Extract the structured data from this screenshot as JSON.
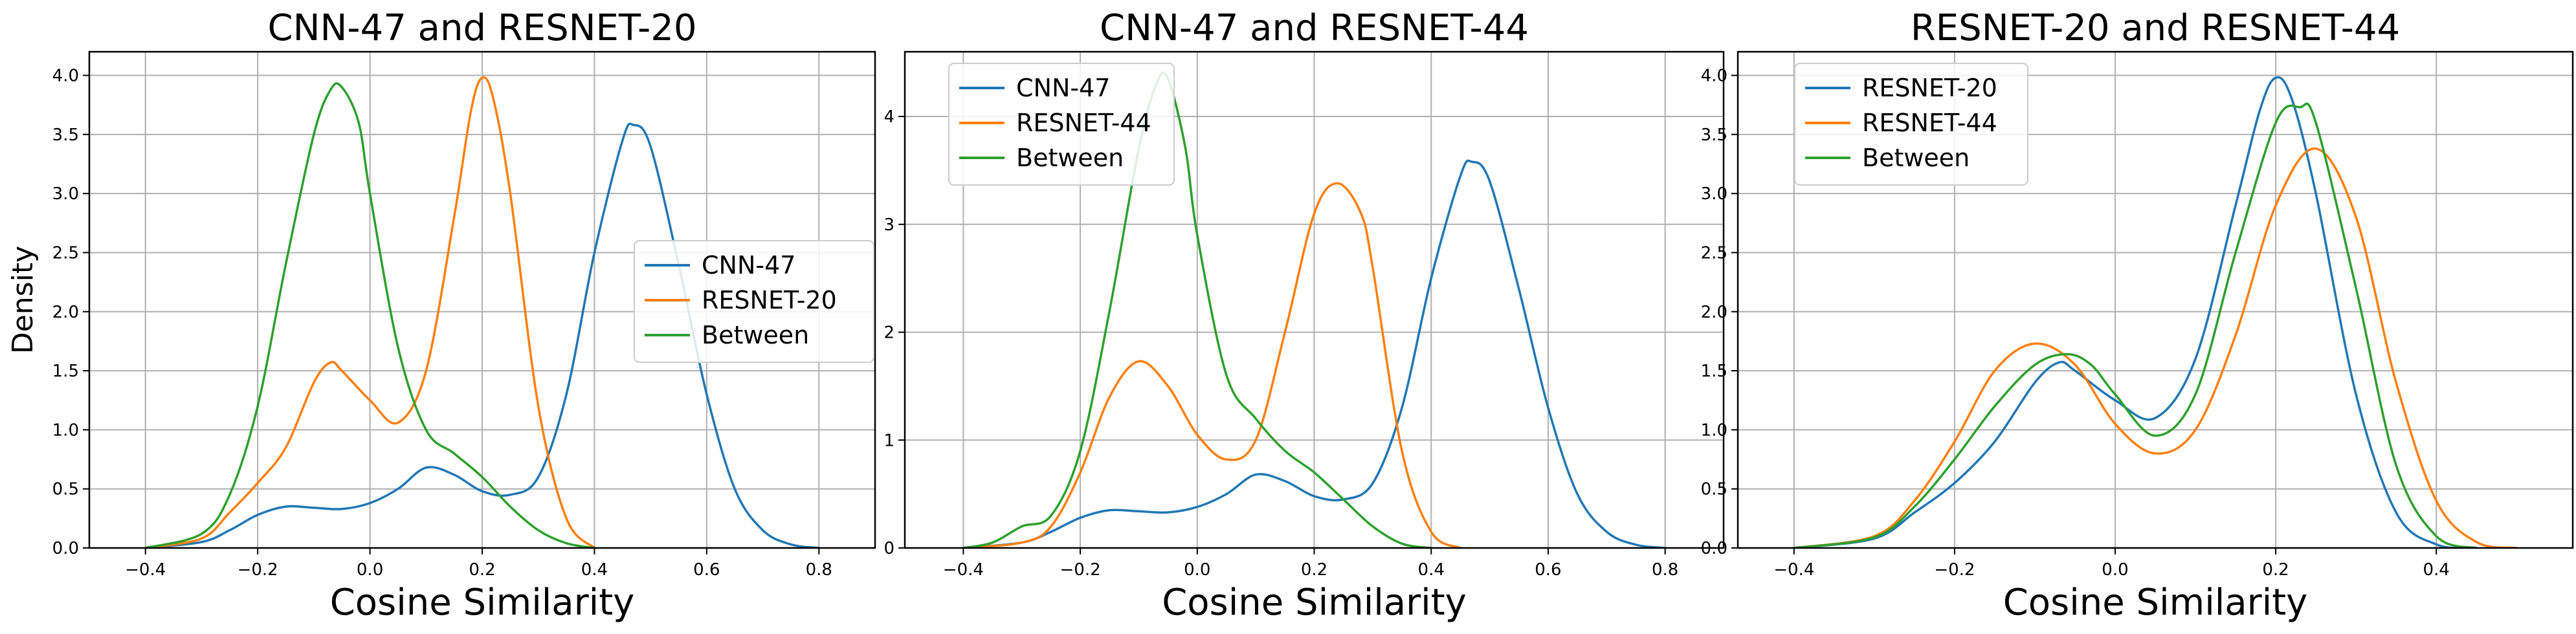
{
  "chart_data": [
    {
      "type": "line",
      "title": "CNN-47 and RESNET-20",
      "xlabel": "Cosine Similarity",
      "ylabel": "Density",
      "xlim": [
        -0.5,
        0.9
      ],
      "ylim": [
        0,
        4.2
      ],
      "xticks": [
        -0.4,
        -0.2,
        0.0,
        0.2,
        0.4,
        0.6,
        0.8
      ],
      "xtick_labels": [
        "−0.4",
        "−0.2",
        "0.0",
        "0.2",
        "0.4",
        "0.6",
        "0.8"
      ],
      "yticks": [
        0,
        0.5,
        1.0,
        1.5,
        2.0,
        2.5,
        3.0,
        3.5,
        4.0
      ],
      "ytick_labels": [
        "0.0",
        "0.5",
        "1.0",
        "1.5",
        "2.0",
        "2.5",
        "3.0",
        "3.5",
        "4.0"
      ],
      "grid": true,
      "legend_position": "center-right",
      "series": [
        {
          "name": "CNN-47",
          "color": "#1f77b4",
          "x": [
            -0.4,
            -0.3,
            -0.25,
            -0.2,
            -0.15,
            -0.1,
            -0.05,
            0.0,
            0.05,
            0.1,
            0.15,
            0.2,
            0.25,
            0.3,
            0.35,
            0.4,
            0.45,
            0.47,
            0.5,
            0.55,
            0.6,
            0.65,
            0.7,
            0.75,
            0.8
          ],
          "y": [
            0.0,
            0.05,
            0.15,
            0.28,
            0.35,
            0.34,
            0.33,
            0.38,
            0.5,
            0.68,
            0.62,
            0.48,
            0.45,
            0.6,
            1.3,
            2.5,
            3.45,
            3.58,
            3.4,
            2.4,
            1.3,
            0.5,
            0.15,
            0.03,
            0.0
          ]
        },
        {
          "name": "RESNET-20",
          "color": "#ff7f0e",
          "x": [
            -0.4,
            -0.3,
            -0.25,
            -0.2,
            -0.15,
            -0.1,
            -0.07,
            -0.05,
            0.0,
            0.05,
            0.1,
            0.15,
            0.18,
            0.2,
            0.22,
            0.25,
            0.3,
            0.35,
            0.4
          ],
          "y": [
            0.0,
            0.08,
            0.3,
            0.55,
            0.85,
            1.4,
            1.57,
            1.5,
            1.25,
            1.06,
            1.5,
            2.8,
            3.7,
            3.98,
            3.8,
            3.0,
            1.2,
            0.25,
            0.0
          ]
        },
        {
          "name": "Between",
          "color": "#2ca02c",
          "x": [
            -0.4,
            -0.3,
            -0.25,
            -0.2,
            -0.15,
            -0.1,
            -0.07,
            -0.05,
            -0.02,
            0.0,
            0.05,
            0.1,
            0.15,
            0.2,
            0.25,
            0.3,
            0.35,
            0.4
          ],
          "y": [
            0.0,
            0.12,
            0.45,
            1.2,
            2.4,
            3.5,
            3.88,
            3.9,
            3.6,
            3.0,
            1.7,
            1.0,
            0.8,
            0.6,
            0.35,
            0.15,
            0.04,
            0.0
          ]
        }
      ]
    },
    {
      "type": "line",
      "title": "CNN-47 and RESNET-44",
      "xlabel": "Cosine Similarity",
      "ylabel": "",
      "xlim": [
        -0.5,
        0.9
      ],
      "ylim": [
        0,
        4.6
      ],
      "xticks": [
        -0.4,
        -0.2,
        0.0,
        0.2,
        0.4,
        0.6,
        0.8
      ],
      "xtick_labels": [
        "−0.4",
        "−0.2",
        "0.0",
        "0.2",
        "0.4",
        "0.6",
        "0.8"
      ],
      "yticks": [
        0,
        1,
        2,
        3,
        4
      ],
      "ytick_labels": [
        "0",
        "1",
        "2",
        "3",
        "4"
      ],
      "grid": true,
      "legend_position": "top-left",
      "series": [
        {
          "name": "CNN-47",
          "color": "#1f77b4",
          "x": [
            -0.4,
            -0.3,
            -0.25,
            -0.2,
            -0.15,
            -0.1,
            -0.05,
            0.0,
            0.05,
            0.1,
            0.15,
            0.2,
            0.25,
            0.3,
            0.35,
            0.4,
            0.45,
            0.47,
            0.5,
            0.55,
            0.6,
            0.65,
            0.7,
            0.75,
            0.8
          ],
          "y": [
            0.0,
            0.05,
            0.15,
            0.28,
            0.35,
            0.34,
            0.33,
            0.38,
            0.5,
            0.68,
            0.62,
            0.48,
            0.45,
            0.6,
            1.3,
            2.5,
            3.45,
            3.58,
            3.4,
            2.4,
            1.3,
            0.5,
            0.15,
            0.03,
            0.0
          ]
        },
        {
          "name": "RESNET-44",
          "color": "#ff7f0e",
          "x": [
            -0.4,
            -0.3,
            -0.25,
            -0.2,
            -0.15,
            -0.1,
            -0.05,
            0.0,
            0.05,
            0.1,
            0.15,
            0.2,
            0.24,
            0.28,
            0.3,
            0.35,
            0.4,
            0.45
          ],
          "y": [
            0.0,
            0.05,
            0.2,
            0.7,
            1.4,
            1.73,
            1.5,
            1.05,
            0.82,
            1.0,
            2.0,
            3.1,
            3.38,
            3.1,
            2.6,
            0.9,
            0.15,
            0.0
          ]
        },
        {
          "name": "Between",
          "color": "#2ca02c",
          "x": [
            -0.4,
            -0.35,
            -0.3,
            -0.25,
            -0.2,
            -0.15,
            -0.1,
            -0.07,
            -0.05,
            -0.02,
            0.0,
            0.05,
            0.1,
            0.15,
            0.2,
            0.25,
            0.3,
            0.35,
            0.4
          ],
          "y": [
            0.0,
            0.05,
            0.2,
            0.3,
            0.9,
            2.2,
            3.7,
            4.3,
            4.35,
            3.7,
            2.9,
            1.6,
            1.2,
            0.9,
            0.7,
            0.45,
            0.2,
            0.04,
            0.0
          ]
        }
      ]
    },
    {
      "type": "line",
      "title": "RESNET-20 and RESNET-44",
      "xlabel": "Cosine Similarity",
      "ylabel": "",
      "xlim": [
        -0.47,
        0.57
      ],
      "ylim": [
        0,
        4.2
      ],
      "xticks": [
        -0.4,
        -0.2,
        0.0,
        0.2,
        0.4
      ],
      "xtick_labels": [
        "−0.4",
        "−0.2",
        "0.0",
        "0.2",
        "0.4"
      ],
      "yticks": [
        0,
        0.5,
        1.0,
        1.5,
        2.0,
        2.5,
        3.0,
        3.5,
        4.0
      ],
      "ytick_labels": [
        "0.0",
        "0.5",
        "1.0",
        "1.5",
        "2.0",
        "2.5",
        "3.0",
        "3.5",
        "4.0"
      ],
      "grid": true,
      "legend_position": "top-left",
      "series": [
        {
          "name": "RESNET-20",
          "color": "#1f77b4",
          "x": [
            -0.4,
            -0.3,
            -0.25,
            -0.2,
            -0.15,
            -0.1,
            -0.07,
            -0.05,
            0.0,
            0.05,
            0.1,
            0.15,
            0.18,
            0.2,
            0.22,
            0.25,
            0.3,
            0.35,
            0.4,
            0.45
          ],
          "y": [
            0.0,
            0.08,
            0.3,
            0.55,
            0.9,
            1.4,
            1.57,
            1.5,
            1.25,
            1.1,
            1.6,
            2.9,
            3.7,
            3.98,
            3.8,
            3.0,
            1.3,
            0.3,
            0.03,
            0.0
          ]
        },
        {
          "name": "RESNET-44",
          "color": "#ff7f0e",
          "x": [
            -0.4,
            -0.3,
            -0.25,
            -0.2,
            -0.15,
            -0.1,
            -0.05,
            0.0,
            0.05,
            0.1,
            0.15,
            0.2,
            0.25,
            0.3,
            0.35,
            0.4,
            0.45,
            0.5
          ],
          "y": [
            0.0,
            0.1,
            0.4,
            0.9,
            1.5,
            1.73,
            1.55,
            1.05,
            0.8,
            1.0,
            1.8,
            2.9,
            3.38,
            2.8,
            1.4,
            0.4,
            0.05,
            0.0
          ]
        },
        {
          "name": "Between",
          "color": "#2ca02c",
          "x": [
            -0.4,
            -0.3,
            -0.25,
            -0.2,
            -0.15,
            -0.1,
            -0.06,
            -0.03,
            0.0,
            0.05,
            0.1,
            0.15,
            0.2,
            0.23,
            0.25,
            0.3,
            0.35,
            0.4,
            0.45
          ],
          "y": [
            0.0,
            0.09,
            0.35,
            0.75,
            1.2,
            1.55,
            1.64,
            1.55,
            1.3,
            0.95,
            1.3,
            2.5,
            3.6,
            3.73,
            3.6,
            2.2,
            0.7,
            0.1,
            0.0
          ]
        }
      ]
    }
  ]
}
